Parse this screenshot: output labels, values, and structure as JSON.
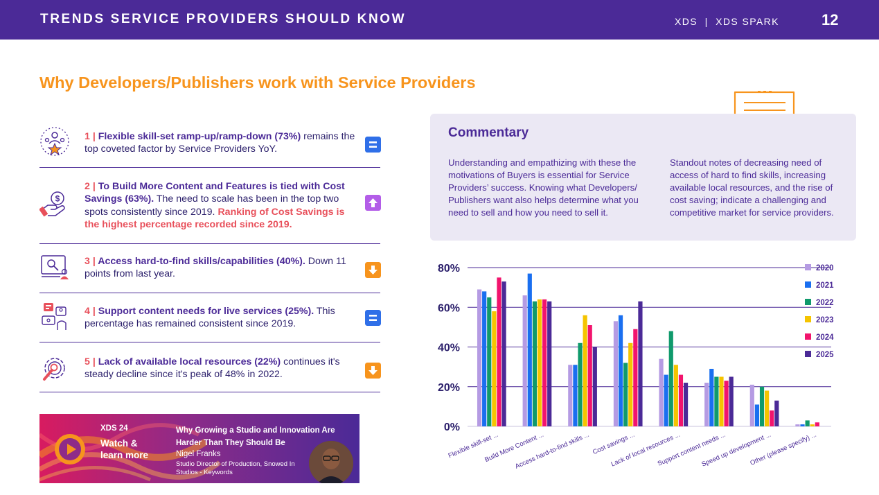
{
  "header": {
    "title": "TRENDS SERVICE PROVIDERS SHOULD KNOW",
    "brand": "XDS  |  XDS SPARK",
    "page_number": "12"
  },
  "section_title": "Why Developers/Publishers work with Service Providers",
  "items": [
    {
      "num": "1 | ",
      "heading": "Flexible skill-set ramp-up/ramp-down (73%)",
      "rest": " remains the top coveted factor by Service Providers YoY.",
      "highlight": "",
      "icon": "people-star-icon",
      "trend": "same",
      "trend_color": "#2f6fe8"
    },
    {
      "num": "2 | ",
      "heading": "To Build More Content and Features is tied with Cost Savings (63%).",
      "rest": " The need to scale has been in the top two spots consistently since 2019. ",
      "highlight": "Ranking of Cost Savings is the highest percentage recorded since 2019.",
      "icon": "hand-coin-icon",
      "trend": "up",
      "trend_color": "#b35de8"
    },
    {
      "num": "3 | ",
      "heading": "Access hard-to-find skills/capabilities (40%).",
      "rest": " Down 11 points from last year.",
      "highlight": "",
      "icon": "monitor-user-icon",
      "trend": "down",
      "trend_color": "#f7941d"
    },
    {
      "num": "4 | ",
      "heading": "Support content needs for live services (25%).",
      "rest": " This percentage has remained consistent since 2019.",
      "highlight": "",
      "icon": "live-service-icon",
      "trend": "same",
      "trend_color": "#2f6fe8"
    },
    {
      "num": "5 | ",
      "heading": "Lack of available local resources (22%)",
      "rest": " continues it's steady decline since it's peak of 48% in 2022.",
      "highlight": "",
      "icon": "gear-search-icon",
      "trend": "down",
      "trend_color": "#f7941d"
    }
  ],
  "video": {
    "event": "XDS 24",
    "cta": "Watch & learn more",
    "talk_title": "Why Growing a Studio and Innovation Are Harder Than They Should Be",
    "speaker": "Nigel Franks",
    "speaker_role": "Studio Director of Production, Snowed In Studios - Keywords"
  },
  "commentary": {
    "title": "Commentary",
    "left": "Understanding and empathizing with these the motivations of Buyers is essential for Service Providers’ success. Knowing what Developers/ Publishers want also helps determine what you need to sell and how you need to sell it.",
    "right": "Standout notes of decreasing need of access of hard to find skills, increasing available local resources, and the rise of cost saving; indicate a challenging and competitive market for service providers."
  },
  "chart_data": {
    "type": "bar",
    "title": "",
    "xlabel": "",
    "ylabel": "",
    "ylim": [
      0,
      80
    ],
    "yticks": [
      0,
      20,
      40,
      60,
      80
    ],
    "ytick_labels": [
      "0%",
      "20%",
      "40%",
      "60%",
      "80%"
    ],
    "grid": true,
    "legend": "right",
    "categories": [
      "Flexible skill-set ...",
      "Build More Content ...",
      "Access hard-to-find skills ...",
      "Cost savings ...",
      "Lack of local resources ...",
      "Support content needs ...",
      "Speed up development ...",
      "Other (please specify) ..."
    ],
    "series": [
      {
        "name": "2020",
        "color": "#b59be3",
        "values": [
          69,
          66,
          31,
          53,
          34,
          22,
          21,
          1
        ]
      },
      {
        "name": "2021",
        "color": "#1a6ff0",
        "values": [
          68,
          77,
          31,
          56,
          26,
          29,
          11,
          1
        ]
      },
      {
        "name": "2022",
        "color": "#109a6c",
        "values": [
          65,
          63,
          42,
          32,
          48,
          25,
          20,
          3
        ]
      },
      {
        "name": "2023",
        "color": "#f5c400",
        "values": [
          58,
          64,
          56,
          42,
          31,
          25,
          18,
          1
        ]
      },
      {
        "name": "2024",
        "color": "#f2146d",
        "values": [
          75,
          64,
          51,
          49,
          26,
          23,
          8,
          2
        ]
      },
      {
        "name": "2025",
        "color": "#4b2a97",
        "values": [
          73,
          63,
          40,
          63,
          22,
          25,
          13,
          0
        ]
      }
    ]
  }
}
